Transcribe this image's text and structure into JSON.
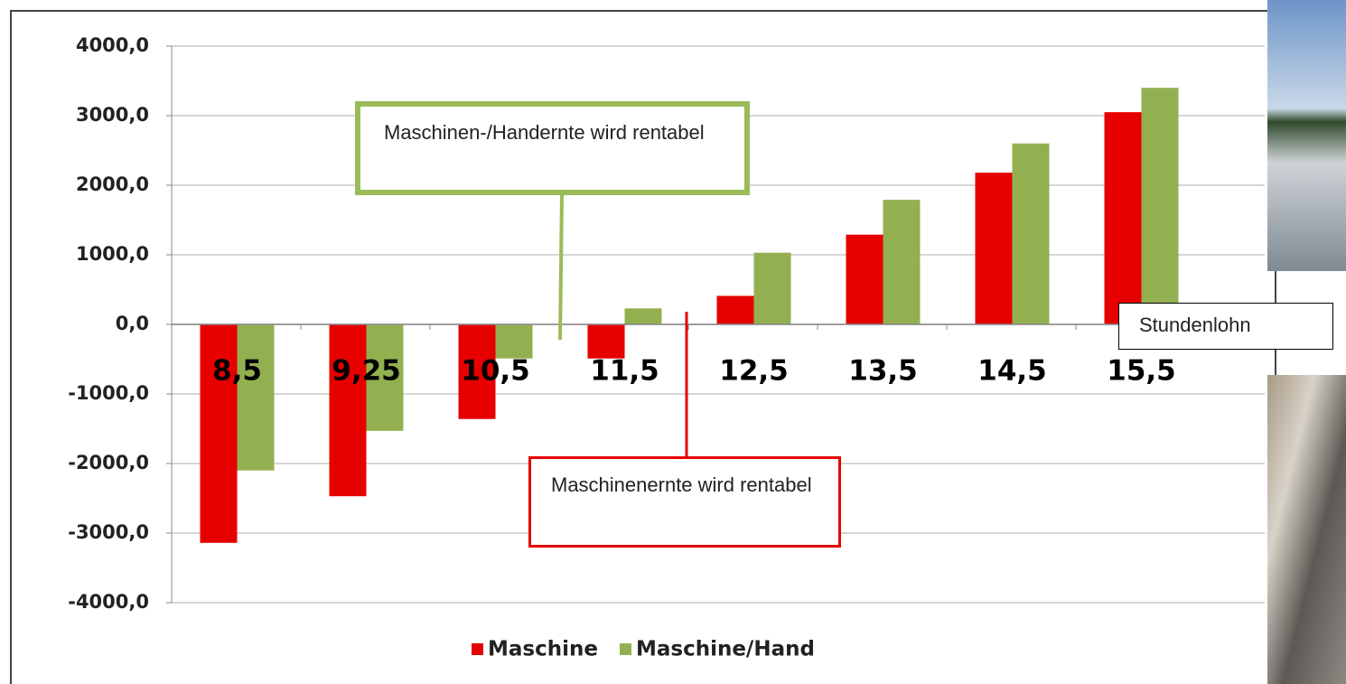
{
  "chart_data": {
    "type": "bar",
    "categories": [
      "8,5",
      "9,25",
      "10,5",
      "11,5",
      "12,5",
      "13,5",
      "14,5",
      "15,5"
    ],
    "series": [
      {
        "name": "Maschine",
        "color": "#e60000",
        "values": [
          -3140,
          -2470,
          -1360,
          -490,
          410,
          1290,
          2180,
          3050
        ]
      },
      {
        "name": "Maschine/Hand",
        "color": "#92b050",
        "values": [
          -2100,
          -1530,
          -490,
          230,
          1030,
          1790,
          2600,
          3400
        ]
      }
    ],
    "ylim": [
      -4000,
      4000
    ],
    "yticks": [
      {
        "value": -4000,
        "label": "-4000,0"
      },
      {
        "value": -3000,
        "label": "-3000,0"
      },
      {
        "value": -2000,
        "label": "-2000,0"
      },
      {
        "value": -1000,
        "label": "-1000,0"
      },
      {
        "value": 0,
        "label": "0,0"
      },
      {
        "value": 1000,
        "label": "1000,0"
      },
      {
        "value": 2000,
        "label": "2000,0"
      },
      {
        "value": 3000,
        "label": "3000,0"
      },
      {
        "value": 4000,
        "label": "4000,0"
      }
    ],
    "grid": true,
    "legend": "bottom",
    "annotations": [
      "Maschinen-/Handernte wird rentabel",
      "Maschinenernte wird rentabel",
      "Stundenlohn"
    ]
  }
}
